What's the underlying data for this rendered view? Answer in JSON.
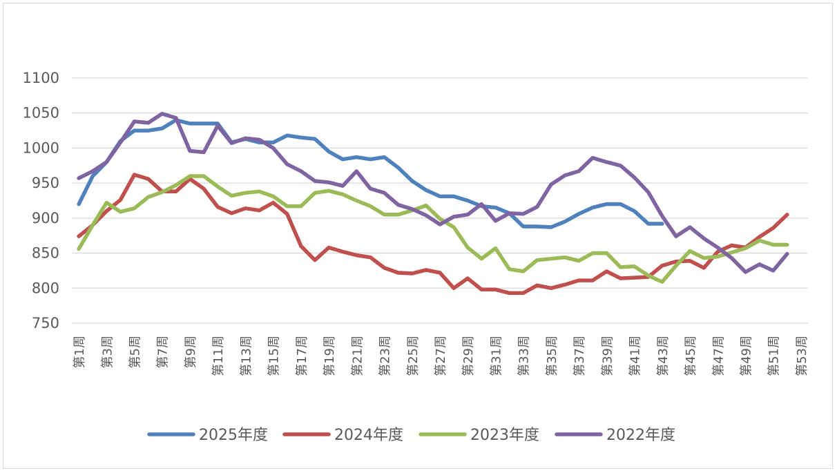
{
  "chart_data": {
    "type": "line",
    "title": "",
    "xlabel": "",
    "ylabel": "",
    "ylim": [
      750,
      1100
    ],
    "yticks": [
      750,
      800,
      850,
      900,
      950,
      1000,
      1050,
      1100
    ],
    "grid": true,
    "legend_position": "bottom",
    "categories": [
      "第1周",
      "第2周",
      "第3周",
      "第4周",
      "第5周",
      "第6周",
      "第7周",
      "第8周",
      "第9周",
      "第10周",
      "第11周",
      "第12周",
      "第13周",
      "第14周",
      "第15周",
      "第16周",
      "第17周",
      "第18周",
      "第19周",
      "第20周",
      "第21周",
      "第22周",
      "第23周",
      "第24周",
      "第25周",
      "第26周",
      "第27周",
      "第28周",
      "第29周",
      "第30周",
      "第31周",
      "第32周",
      "第33周",
      "第34周",
      "第35周",
      "第36周",
      "第37周",
      "第38周",
      "第39周",
      "第40周",
      "第41周",
      "第42周",
      "第43周",
      "第44周",
      "第45周",
      "第46周",
      "第47周",
      "第48周",
      "第49周",
      "第50周",
      "第51周",
      "第52周",
      "第53周"
    ],
    "xtick_labels": [
      "第1周",
      "第3周",
      "第5周",
      "第7周",
      "第9周",
      "第11周",
      "第13周",
      "第15周",
      "第17周",
      "第19周",
      "第21周",
      "第23周",
      "第25周",
      "第27周",
      "第29周",
      "第31周",
      "第33周",
      "第35周",
      "第37周",
      "第39周",
      "第41周",
      "第43周",
      "第45周",
      "第47周",
      "第49周",
      "第51周",
      "第53周"
    ],
    "series": [
      {
        "name": "2025年度",
        "color": "#4f81bd",
        "values": [
          920,
          960,
          980,
          1010,
          1025,
          1025,
          1028,
          1040,
          1035,
          1035,
          1035,
          1008,
          1013,
          1008,
          1008,
          1018,
          1015,
          1013,
          995,
          984,
          987,
          984,
          987,
          972,
          953,
          940,
          931,
          931,
          925,
          917,
          915,
          907,
          888,
          888,
          887,
          895,
          906,
          915,
          920,
          920,
          910,
          892,
          892
        ]
      },
      {
        "name": "2024年度",
        "color": "#c0504d",
        "values": [
          874,
          890,
          910,
          926,
          962,
          956,
          938,
          938,
          956,
          942,
          916,
          907,
          914,
          911,
          922,
          906,
          860,
          840,
          858,
          852,
          847,
          844,
          829,
          822,
          821,
          826,
          822,
          800,
          814,
          798,
          798,
          793,
          793,
          804,
          800,
          805,
          811,
          811,
          824,
          814,
          815,
          816,
          832,
          838,
          839,
          829,
          852,
          861,
          858,
          873,
          886,
          905
        ]
      },
      {
        "name": "2023年度",
        "color": "#9bbb59",
        "values": [
          856,
          890,
          922,
          909,
          914,
          930,
          937,
          947,
          960,
          960,
          945,
          932,
          936,
          938,
          931,
          917,
          917,
          936,
          939,
          934,
          925,
          917,
          905,
          905,
          911,
          918,
          899,
          887,
          858,
          842,
          857,
          827,
          824,
          840,
          842,
          844,
          839,
          850,
          850,
          830,
          831,
          818,
          809,
          832,
          853,
          843,
          845,
          851,
          857,
          868,
          862,
          862
        ]
      },
      {
        "name": "2022年度",
        "color": "#8064a2",
        "values": [
          957,
          967,
          980,
          1008,
          1038,
          1036,
          1049,
          1043,
          996,
          994,
          1032,
          1007,
          1014,
          1012,
          1000,
          977,
          967,
          953,
          951,
          946,
          967,
          942,
          936,
          919,
          913,
          904,
          891,
          902,
          905,
          920,
          896,
          907,
          906,
          916,
          948,
          961,
          967,
          986,
          980,
          975,
          958,
          937,
          903,
          874,
          887,
          871,
          858,
          843,
          823,
          834,
          825,
          849
        ]
      }
    ]
  }
}
